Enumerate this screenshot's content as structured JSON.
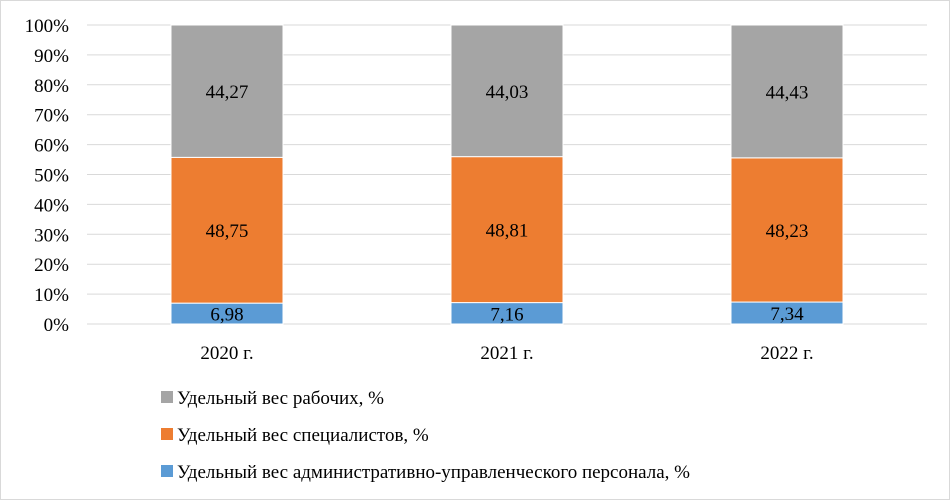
{
  "chart_data": {
    "type": "bar",
    "stacked": true,
    "percent_stacked": true,
    "categories": [
      "2020 г.",
      "2021 г.",
      "2022 г."
    ],
    "series": [
      {
        "name": "Удельный вес административно-управленческого персонала, %",
        "values": [
          6.98,
          7.16,
          7.34
        ],
        "labels": [
          "6,98",
          "7,16",
          "7,34"
        ],
        "color": "#5b9bd5"
      },
      {
        "name": "Удельный вес специалистов, %",
        "values": [
          48.75,
          48.81,
          48.23
        ],
        "labels": [
          "48,75",
          "48,81",
          "48,23"
        ],
        "color": "#ed7d31"
      },
      {
        "name": "Удельный вес рабочих, %",
        "values": [
          44.27,
          44.03,
          44.43
        ],
        "labels": [
          "44,27",
          "44,03",
          "44,43"
        ],
        "color": "#a5a5a5"
      }
    ],
    "y_ticks": [
      "0%",
      "10%",
      "20%",
      "30%",
      "40%",
      "50%",
      "60%",
      "70%",
      "80%",
      "90%",
      "100%"
    ],
    "ylim": [
      0,
      100
    ],
    "grid": true,
    "legend_position": "bottom",
    "legend_order": [
      2,
      1,
      0
    ]
  }
}
